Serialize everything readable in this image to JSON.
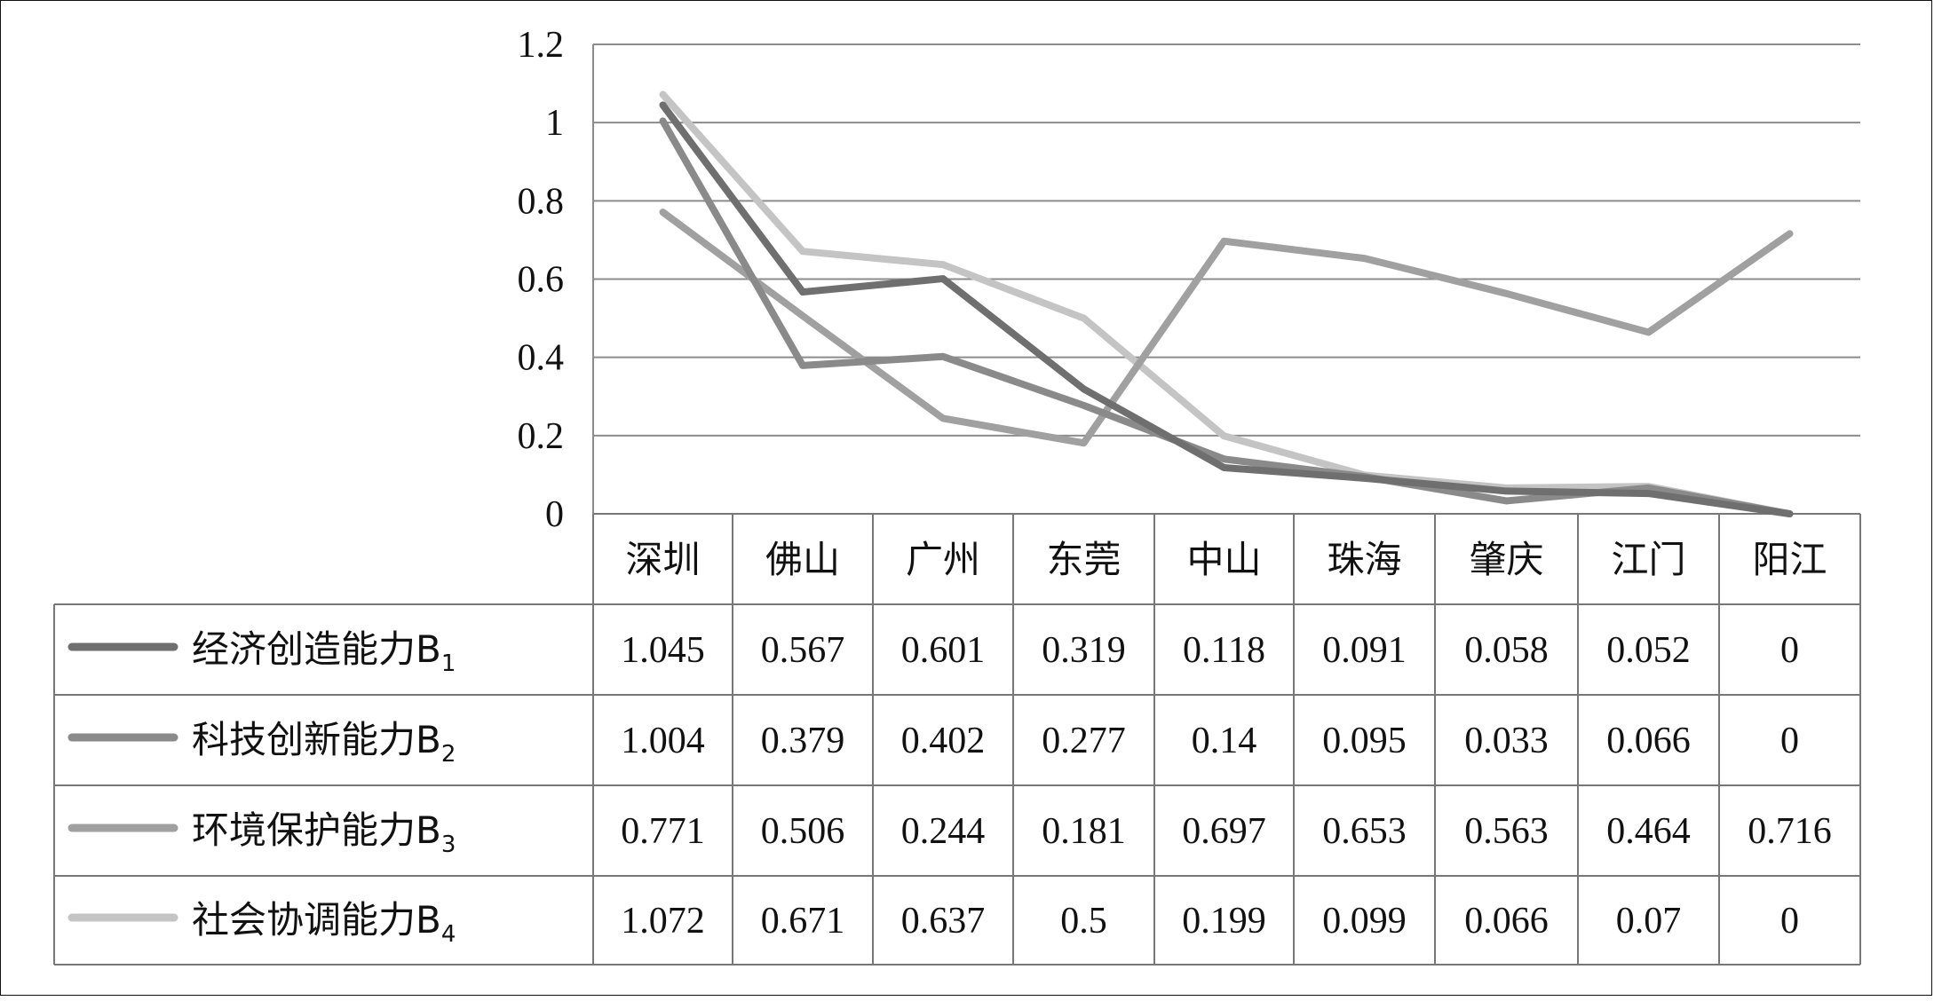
{
  "chart_data": {
    "type": "line",
    "categories": [
      "深圳",
      "佛山",
      "广州",
      "东莞",
      "中山",
      "珠海",
      "肇庆",
      "江门",
      "阳江"
    ],
    "series": [
      {
        "name": "经济创造能力B",
        "sub": "1",
        "color": "#6f6f6f",
        "values": [
          1.045,
          0.567,
          0.601,
          0.319,
          0.118,
          0.091,
          0.058,
          0.052,
          0
        ]
      },
      {
        "name": "科技创新能力B",
        "sub": "2",
        "color": "#8a8a8a",
        "values": [
          1.004,
          0.379,
          0.402,
          0.277,
          0.14,
          0.095,
          0.033,
          0.066,
          0
        ]
      },
      {
        "name": "环境保护能力B",
        "sub": "3",
        "color": "#a0a0a0",
        "values": [
          0.771,
          0.506,
          0.244,
          0.181,
          0.697,
          0.653,
          0.563,
          0.464,
          0.716
        ]
      },
      {
        "name": "社会协调能力B",
        "sub": "4",
        "color": "#c4c4c4",
        "values": [
          1.072,
          0.671,
          0.637,
          0.5,
          0.199,
          0.099,
          0.066,
          0.07,
          0
        ]
      }
    ],
    "table_values": [
      [
        "1.045",
        "0.567",
        "0.601",
        "0.319",
        "0.118",
        "0.091",
        "0.058",
        "0.052",
        "0"
      ],
      [
        "1.004",
        "0.379",
        "0.402",
        "0.277",
        "0.14",
        "0.095",
        "0.033",
        "0.066",
        "0"
      ],
      [
        "0.771",
        "0.506",
        "0.244",
        "0.181",
        "0.697",
        "0.653",
        "0.563",
        "0.464",
        "0.716"
      ],
      [
        "1.072",
        "0.671",
        "0.637",
        "0.5",
        "0.199",
        "0.099",
        "0.066",
        "0.07",
        "0"
      ]
    ],
    "y_ticks": [
      "0",
      "0.2",
      "0.4",
      "0.6",
      "0.8",
      "1",
      "1.2"
    ],
    "ylim": [
      0,
      1.2
    ],
    "grid": true,
    "legend": "data-table"
  }
}
